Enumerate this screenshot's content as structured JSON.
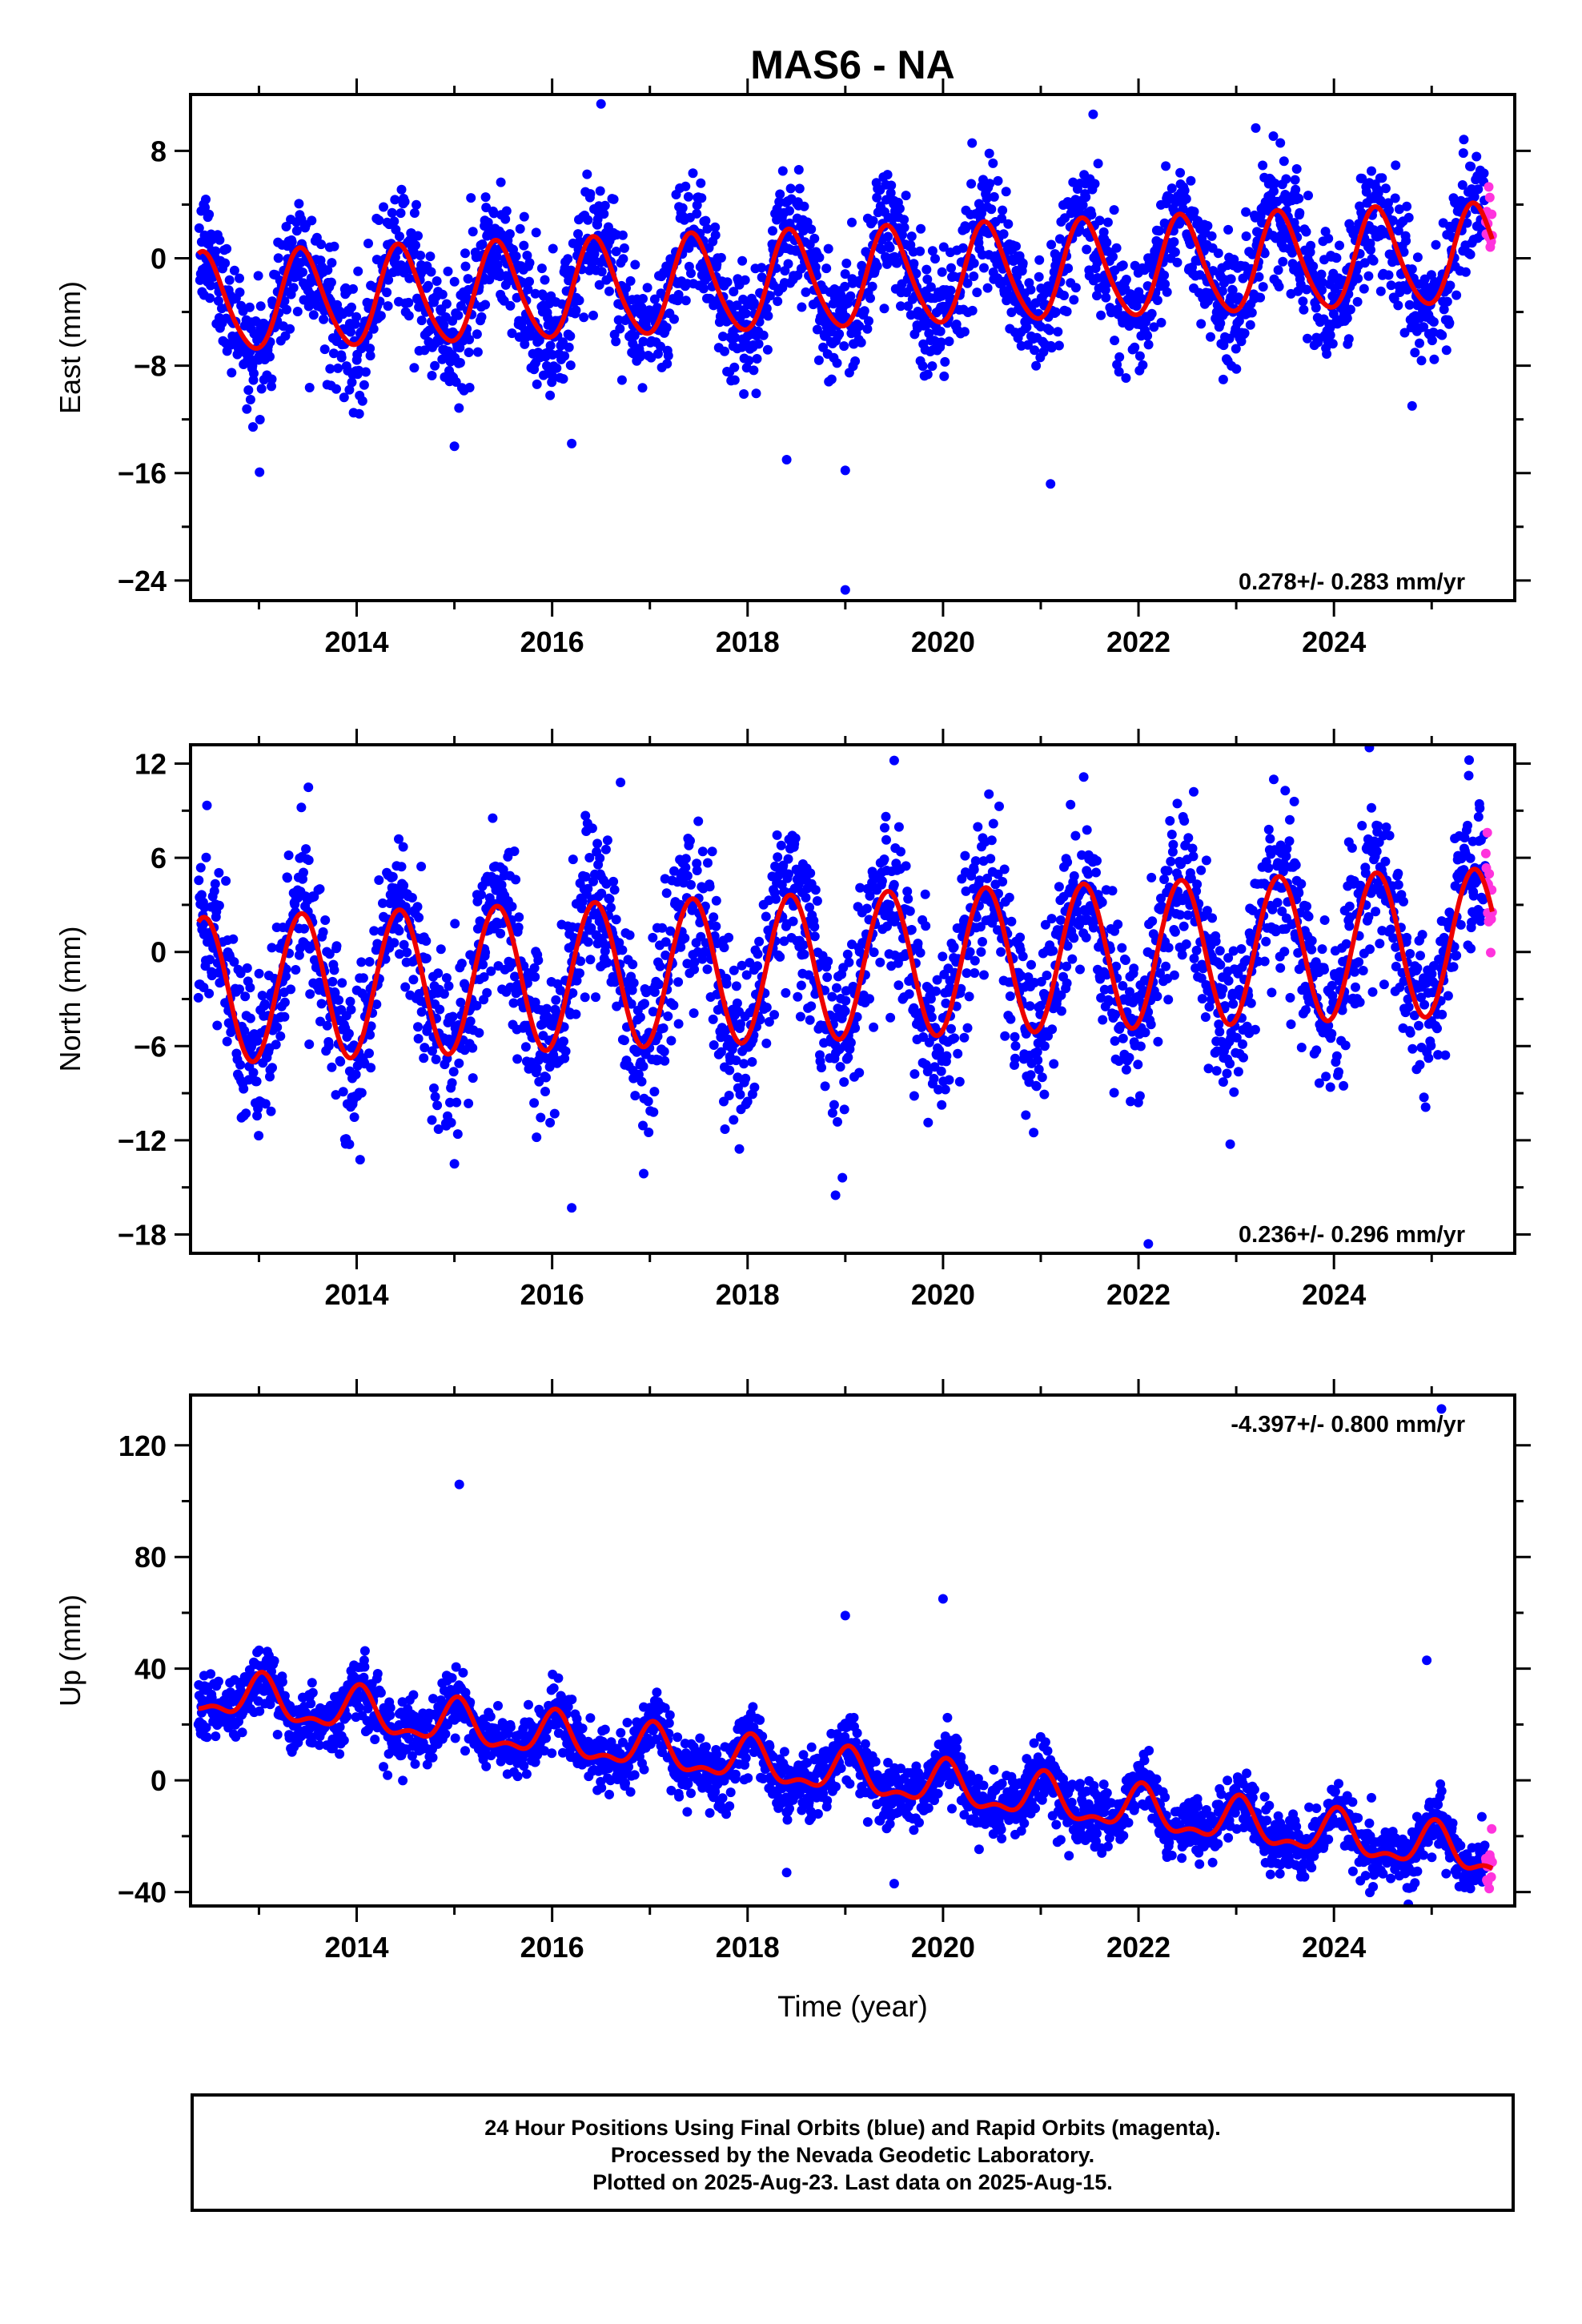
{
  "title": "MAS6 - NA",
  "x_axis": {
    "label": "Time (year)",
    "range": [
      2012.3,
      2025.85
    ],
    "ticks": [
      2014,
      2016,
      2018,
      2020,
      2022,
      2024
    ],
    "tick_labels": [
      "2014",
      "2016",
      "2018",
      "2020",
      "2022",
      "2024"
    ]
  },
  "chart_data": [
    {
      "type": "scatter",
      "component": "East",
      "ylabel": "East (mm)",
      "ylim": [
        -25.5,
        12.2
      ],
      "yticks": [
        8,
        0,
        -8,
        -16,
        -24
      ],
      "ytick_labels": [
        "8",
        "0",
        "−8",
        "−16",
        "−24"
      ],
      "rate": "0.278+/- 0.283 mm/yr",
      "rate_position": "bottom-right",
      "model": {
        "offset": -1.6,
        "trend": 0.278,
        "a1c": -3.4,
        "a1s": 1.3,
        "a2c": 0.0,
        "a2s": -0.4
      },
      "noise": 2.3,
      "outliers": [
        {
          "x": 2016.5,
          "y": 11.5
        },
        {
          "x": 2018.4,
          "y": -15.0
        },
        {
          "x": 2019.0,
          "y": -24.7
        },
        {
          "x": 2019.0,
          "y": -15.8
        },
        {
          "x": 2021.1,
          "y": -16.8
        },
        {
          "x": 2016.2,
          "y": -13.8
        },
        {
          "x": 2015.0,
          "y": -14.0
        },
        {
          "x": 2023.2,
          "y": 9.7
        },
        {
          "x": 2024.8,
          "y": -11.0
        }
      ]
    },
    {
      "type": "scatter",
      "component": "North",
      "ylabel": "North (mm)",
      "ylim": [
        -19.2,
        13.2
      ],
      "yticks": [
        12,
        6,
        0,
        -6,
        -12,
        -18
      ],
      "ytick_labels": [
        "12",
        "6",
        "0",
        "−6",
        "−12",
        "−18"
      ],
      "rate": "0.236+/- 0.296 mm/yr",
      "rate_position": "bottom-right",
      "model": {
        "offset": -0.9,
        "trend": 0.236,
        "a1c": -4.3,
        "a1s": 1.8,
        "a2c": 0.0,
        "a2s": 0.0
      },
      "noise": 2.6,
      "outliers": [
        {
          "x": 2019.5,
          "y": 12.2
        },
        {
          "x": 2022.1,
          "y": -18.6
        },
        {
          "x": 2015.0,
          "y": -13.5
        },
        {
          "x": 2016.2,
          "y": -16.3
        },
        {
          "x": 2018.9,
          "y": -15.5
        },
        {
          "x": 2016.7,
          "y": 10.8
        }
      ]
    },
    {
      "type": "scatter",
      "component": "Up",
      "ylabel": "Up (mm)",
      "ylim": [
        -45,
        138
      ],
      "yticks": [
        120,
        80,
        40,
        0,
        -40
      ],
      "ytick_labels": [
        "120",
        "80",
        "40",
        "0",
        "−40"
      ],
      "rate": "-4.397+/- 0.800 mm/yr",
      "rate_position": "top-right",
      "model": {
        "offset": 2.0,
        "trend": -4.397,
        "a1c": 7.0,
        "a1s": 1.5,
        "a2c": 3.0,
        "a2s": 1.5
      },
      "noise": 5.5,
      "outliers": [
        {
          "x": 2015.05,
          "y": 106
        },
        {
          "x": 2019.0,
          "y": 59
        },
        {
          "x": 2020.0,
          "y": 65
        },
        {
          "x": 2025.1,
          "y": 133
        },
        {
          "x": 2024.95,
          "y": 43
        },
        {
          "x": 2018.4,
          "y": -33
        },
        {
          "x": 2019.5,
          "y": -37
        }
      ]
    }
  ],
  "final_end": 2025.55,
  "rapid_end": 2025.62,
  "colors": {
    "final": "#0000ff",
    "rapid": "#ff33dd",
    "model": "#ee0000"
  },
  "footer": {
    "line1": "24 Hour Positions Using Final Orbits (blue) and Rapid Orbits (magenta).",
    "line2": "Processed by the Nevada Geodetic Laboratory.",
    "line3": "Plotted on 2025-Aug-23. Last data on 2025-Aug-15."
  }
}
